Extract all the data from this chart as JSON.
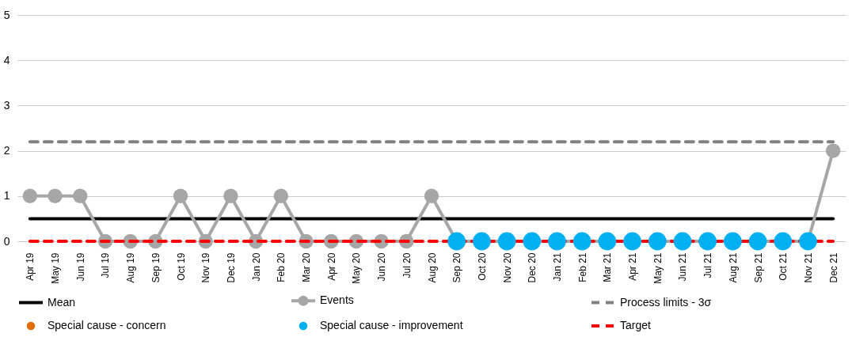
{
  "chart_data": {
    "type": "line",
    "categories": [
      "Apr 19",
      "May 19",
      "Jun 19",
      "Jul 19",
      "Aug 19",
      "Sep 19",
      "Oct 19",
      "Nov 19",
      "Dec 19",
      "Jan 20",
      "Feb 20",
      "Mar 20",
      "Apr 20",
      "May 20",
      "Jun 20",
      "Jul 20",
      "Aug 20",
      "Sep 20",
      "Oct 20",
      "Nov 20",
      "Dec 20",
      "Jan 21",
      "Feb 21",
      "Mar 21",
      "Apr 21",
      "May 21",
      "Jun 21",
      "Jul 21",
      "Aug 21",
      "Sep 21",
      "Oct 21",
      "Nov 21",
      "Dec 21"
    ],
    "series": [
      {
        "name": "Mean",
        "color": "#000000",
        "line_style": "solid",
        "values": [
          0.5,
          0.5,
          0.5,
          0.5,
          0.5,
          0.5,
          0.5,
          0.5,
          0.5,
          0.5,
          0.5,
          0.5,
          0.5,
          0.5,
          0.5,
          0.5,
          0.5,
          0.5,
          0.5,
          0.5,
          0.5,
          0.5,
          0.5,
          0.5,
          0.5,
          0.5,
          0.5,
          0.5,
          0.5,
          0.5,
          0.5,
          0.5,
          0.5
        ]
      },
      {
        "name": "Events",
        "color": "#a6a6a6",
        "line_style": "solid",
        "marker": "circle",
        "values": [
          1,
          1,
          1,
          0,
          0,
          0,
          1,
          0,
          1,
          0,
          1,
          0,
          0,
          0,
          0,
          0,
          1,
          0,
          0,
          0,
          0,
          0,
          0,
          0,
          0,
          0,
          0,
          0,
          0,
          0,
          0,
          0,
          2
        ]
      },
      {
        "name": "Process limits - 3σ",
        "color": "#808080",
        "line_style": "dashed",
        "values": [
          2.2,
          2.2,
          2.2,
          2.2,
          2.2,
          2.2,
          2.2,
          2.2,
          2.2,
          2.2,
          2.2,
          2.2,
          2.2,
          2.2,
          2.2,
          2.2,
          2.2,
          2.2,
          2.2,
          2.2,
          2.2,
          2.2,
          2.2,
          2.2,
          2.2,
          2.2,
          2.2,
          2.2,
          2.2,
          2.2,
          2.2,
          2.2,
          2.2
        ]
      },
      {
        "name": "Special cause - concern",
        "type": "scatter",
        "color": "#e36c0a",
        "marker": "circle",
        "values": [
          null,
          null,
          null,
          null,
          null,
          null,
          null,
          null,
          null,
          null,
          null,
          null,
          null,
          null,
          null,
          null,
          null,
          null,
          null,
          null,
          null,
          null,
          null,
          null,
          null,
          null,
          null,
          null,
          null,
          null,
          null,
          null,
          null
        ]
      },
      {
        "name": "Special cause  - improvement",
        "type": "scatter",
        "color": "#00b0f0",
        "marker": "circle",
        "values": [
          null,
          null,
          null,
          null,
          null,
          null,
          null,
          null,
          null,
          null,
          null,
          null,
          null,
          null,
          null,
          null,
          null,
          0,
          0,
          0,
          0,
          0,
          0,
          0,
          0,
          0,
          0,
          0,
          0,
          0,
          0,
          0,
          null
        ]
      },
      {
        "name": "Target",
        "color": "#ff0000",
        "line_style": "dashed",
        "values": [
          0,
          0,
          0,
          0,
          0,
          0,
          0,
          0,
          0,
          0,
          0,
          0,
          0,
          0,
          0,
          0,
          0,
          0,
          0,
          0,
          0,
          0,
          0,
          0,
          0,
          0,
          0,
          0,
          0,
          0,
          0,
          0,
          0
        ]
      }
    ],
    "ylim": [
      0,
      5
    ],
    "yticks": [
      0,
      1,
      2,
      3,
      4,
      5
    ],
    "grid": "y",
    "legend": "bottom"
  }
}
